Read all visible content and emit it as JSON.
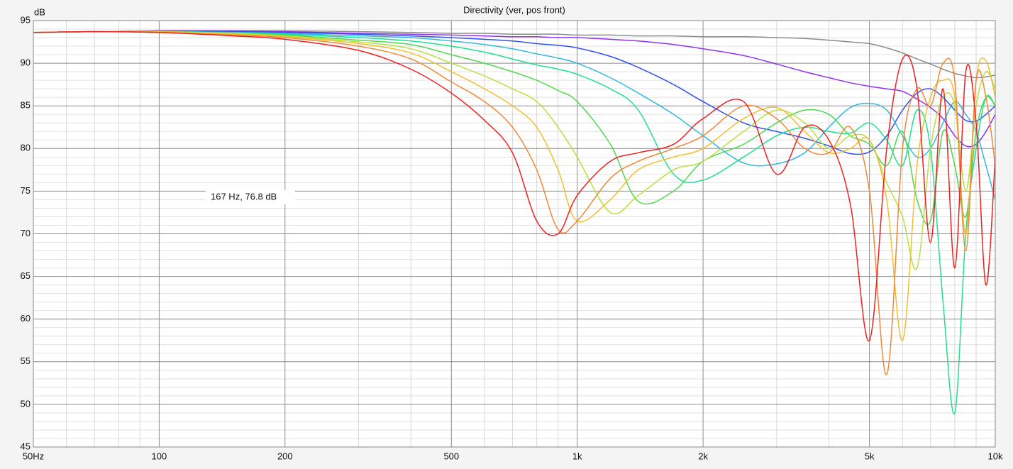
{
  "chart_data": {
    "type": "line",
    "title": "Directivity (ver, pos front)",
    "y_axis_label": "dB",
    "annotation": "167 Hz, 76.8 dB",
    "log_x": true,
    "grid": true,
    "xlim": [
      50,
      10000
    ],
    "ylim": [
      45,
      95
    ],
    "xticks": [
      {
        "value": 50,
        "label": "50Hz"
      },
      100,
      200,
      500,
      {
        "value": 1000,
        "label": "1k"
      },
      {
        "value": 2000,
        "label": "2k"
      },
      {
        "value": 5000,
        "label": "5k"
      },
      {
        "value": 10000,
        "label": "10k"
      }
    ],
    "xminorticks": [
      60,
      70,
      80,
      90,
      300,
      400,
      600,
      700,
      800,
      900,
      3000,
      4000,
      6000,
      7000,
      8000,
      9000
    ],
    "yticks": [
      45,
      50,
      55,
      60,
      65,
      70,
      75,
      80,
      85,
      90,
      95
    ],
    "yminorticks": [
      46,
      47,
      48,
      49,
      51,
      52,
      53,
      54,
      56,
      57,
      58,
      59,
      61,
      62,
      63,
      64,
      66,
      67,
      68,
      69,
      71,
      72,
      73,
      74,
      76,
      77,
      78,
      79,
      81,
      82,
      83,
      84,
      86,
      87,
      88,
      89,
      91,
      92,
      93,
      94
    ],
    "x": [
      50,
      70,
      100,
      150,
      200,
      300,
      400,
      500,
      600,
      700,
      800,
      900,
      1000,
      1200,
      1400,
      1700,
      2000,
      2500,
      3000,
      3500,
      4000,
      4500,
      5000,
      5500,
      6000,
      6500,
      7000,
      7500,
      8000,
      8500,
      9000,
      9500,
      10000
    ],
    "series": [
      {
        "color": "#8a8a8a",
        "values": [
          93.6,
          93.7,
          93.8,
          93.8,
          93.8,
          93.7,
          93.6,
          93.5,
          93.5,
          93.4,
          93.4,
          93.4,
          93.3,
          93.3,
          93.2,
          93.2,
          93.1,
          93.1,
          93,
          92.9,
          92.7,
          92.5,
          92.3,
          91.8,
          91.2,
          90.5,
          89.9,
          89.3,
          88.8,
          88.5,
          88.3,
          88.4,
          88.6
        ]
      },
      {
        "color": "#9030f0",
        "values": [
          93.6,
          93.7,
          93.8,
          93.8,
          93.7,
          93.5,
          93.4,
          93.3,
          93.2,
          93.1,
          93.1,
          93,
          93,
          92.8,
          92.6,
          92.2,
          91.7,
          90.9,
          89.9,
          89,
          88.3,
          87.7,
          87.3,
          87,
          86.7,
          85.8,
          84.8,
          83.5,
          81.5,
          80.3,
          80.5,
          82,
          84
        ]
      },
      {
        "color": "#3050f0",
        "values": [
          93.6,
          93.7,
          93.7,
          93.7,
          93.6,
          93.4,
          93.2,
          93,
          92.8,
          92.6,
          92.3,
          92.1,
          91.8,
          90.8,
          89.5,
          87.5,
          85.5,
          83,
          82,
          81.2,
          80.3,
          79.4,
          79.6,
          81.5,
          84.5,
          86.5,
          87,
          86,
          84.5,
          83.3,
          83.2,
          84,
          85
        ]
      },
      {
        "color": "#30b8e0",
        "values": [
          93.6,
          93.7,
          93.7,
          93.6,
          93.5,
          93.2,
          93,
          92.6,
          92.2,
          91.7,
          91.1,
          90.6,
          90,
          88.3,
          86.5,
          84,
          81.5,
          78.3,
          78.2,
          79.5,
          82.5,
          84.8,
          85.3,
          84.5,
          81.5,
          79,
          80,
          83,
          85.5,
          84,
          82,
          78,
          74
        ]
      },
      {
        "color": "#20e090",
        "values": [
          93.6,
          93.7,
          93.7,
          93.6,
          93.4,
          93,
          92.6,
          92,
          91.3,
          90.5,
          89.8,
          89.3,
          88.7,
          87,
          84.5,
          77,
          76.3,
          79,
          81.5,
          82.5,
          82,
          81.8,
          83,
          81,
          78,
          84.5,
          80,
          62,
          49,
          70,
          80,
          86,
          85
        ]
      },
      {
        "color": "#50d850",
        "values": [
          93.6,
          93.7,
          93.7,
          93.5,
          93.3,
          92.7,
          92.2,
          91,
          90,
          89,
          88,
          86.8,
          85.5,
          80.5,
          73.8,
          75,
          78.5,
          80.5,
          83,
          84.5,
          84,
          81.5,
          80.5,
          78,
          82,
          74,
          71.5,
          82,
          78,
          72,
          82,
          86,
          85
        ]
      },
      {
        "color": "#b8e040",
        "values": [
          93.6,
          93.7,
          93.7,
          93.5,
          93.2,
          92.5,
          91.7,
          90,
          88.5,
          87,
          85.5,
          82.5,
          79,
          72.5,
          74.5,
          77.5,
          78.5,
          82,
          84.5,
          83,
          80,
          81.5,
          81,
          76,
          72,
          66,
          80,
          86,
          85,
          75,
          85,
          89,
          87
        ]
      },
      {
        "color": "#f0c030",
        "values": [
          93.6,
          93.7,
          93.7,
          93.4,
          93.1,
          92.3,
          91.2,
          89,
          87,
          85,
          82.5,
          77.5,
          71.5,
          74,
          77.5,
          79,
          80,
          83.5,
          84.8,
          82,
          79.5,
          80,
          81,
          74,
          57.5,
          78,
          86,
          88,
          86,
          70,
          88,
          90.3,
          86
        ]
      },
      {
        "color": "#f08838",
        "values": [
          93.6,
          93.7,
          93.6,
          93.3,
          93,
          92,
          90.5,
          87.8,
          85.5,
          82.5,
          77.5,
          70.5,
          71.5,
          76.5,
          78.5,
          80,
          81.5,
          85,
          83.5,
          80,
          79.5,
          82.5,
          75,
          53.5,
          80,
          87,
          85,
          90,
          88,
          68,
          88,
          86,
          78
        ]
      },
      {
        "color": "#f02020",
        "values": [
          93.6,
          93.7,
          93.6,
          93.2,
          92.8,
          91.5,
          89.3,
          86.5,
          83.3,
          79.5,
          71.5,
          70,
          74.5,
          78.5,
          79.5,
          80.5,
          83.5,
          85.5,
          77,
          82.5,
          81,
          73.5,
          57.5,
          80,
          90.5,
          87,
          69,
          87,
          66,
          89,
          83,
          64,
          79
        ]
      }
    ]
  }
}
